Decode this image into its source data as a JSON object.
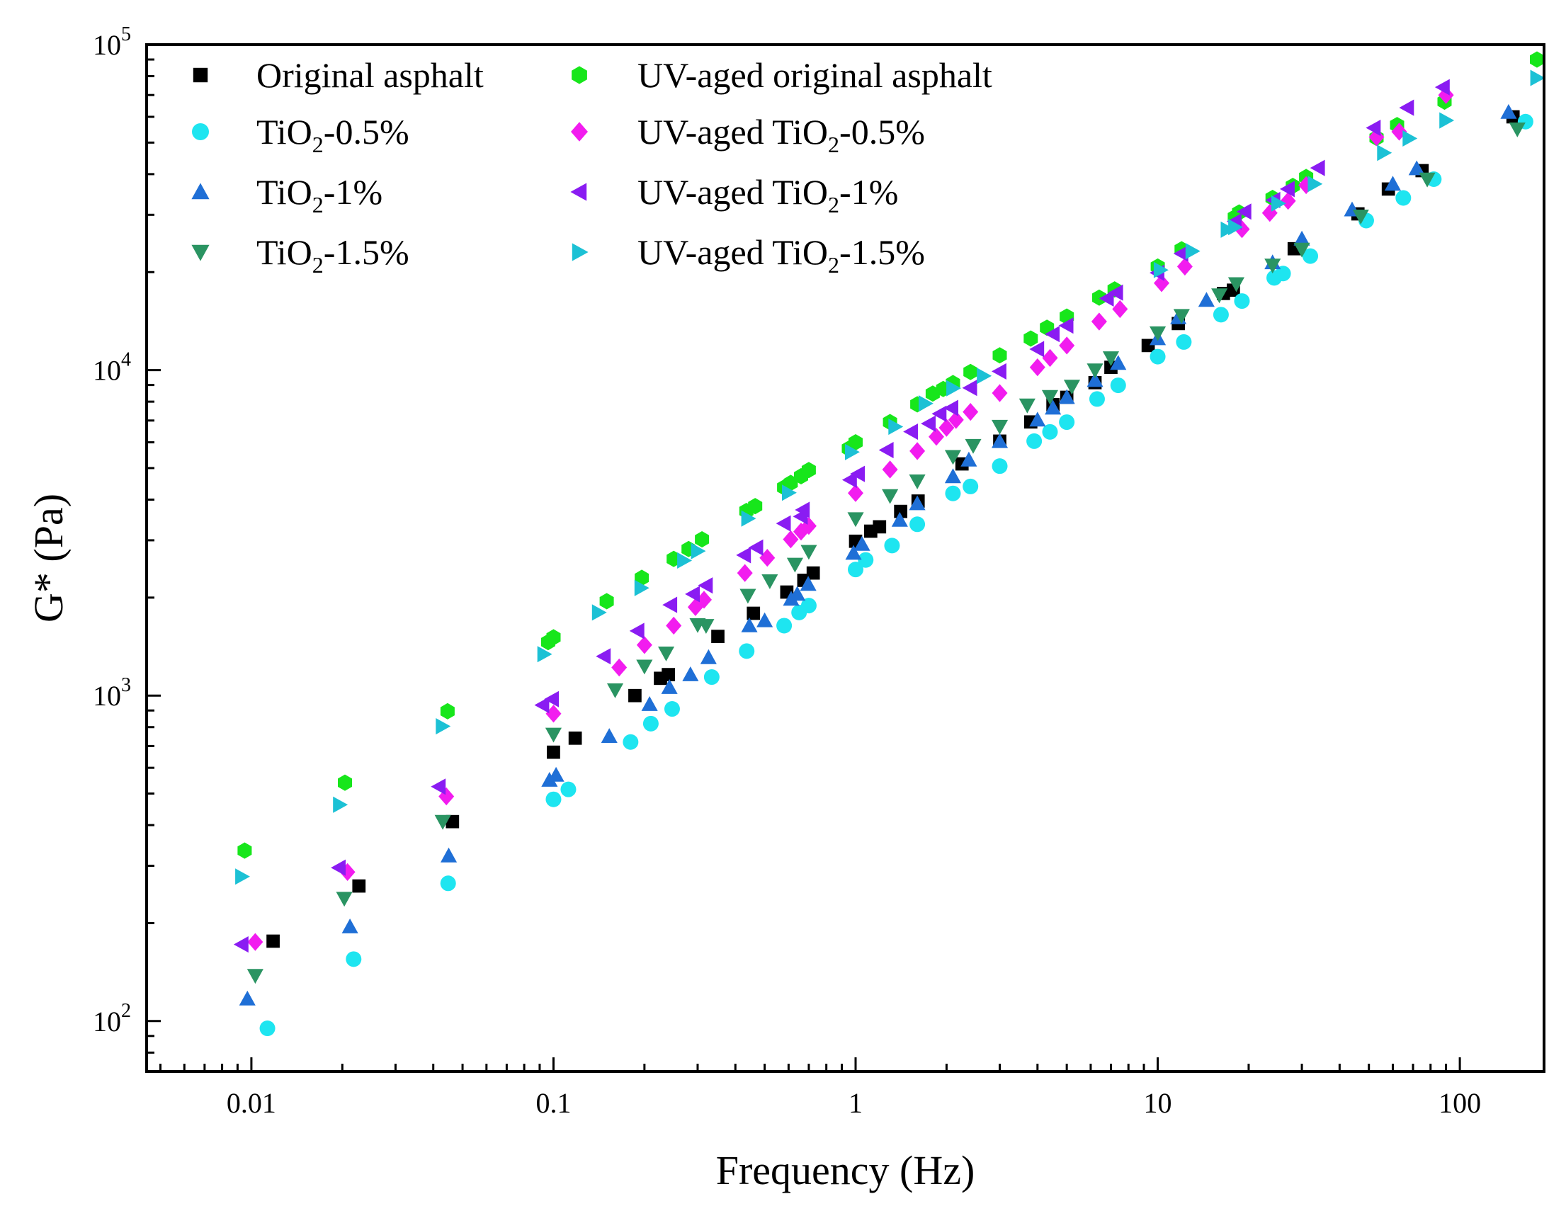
{
  "chart_data": {
    "type": "scatter",
    "title": "",
    "xlabel": "Frequency (Hz)",
    "ylabel": "G* (Pa)",
    "xscale": "log",
    "yscale": "log",
    "xlim": [
      0.0045,
      190
    ],
    "ylim": [
      70,
      100000
    ],
    "legend_position": "top-left",
    "x_ticks": [
      {
        "value": 0.01,
        "label": "0.01"
      },
      {
        "value": 0.1,
        "label": "0.1"
      },
      {
        "value": 1,
        "label": "1"
      },
      {
        "value": 10,
        "label": "10"
      },
      {
        "value": 100,
        "label": "100"
      }
    ],
    "y_ticks": [
      {
        "value": 100,
        "base": "10",
        "exp": "2"
      },
      {
        "value": 1000,
        "base": "10",
        "exp": "3"
      },
      {
        "value": 10000,
        "base": "10",
        "exp": "4"
      },
      {
        "value": 100000,
        "base": "10",
        "exp": "5"
      }
    ],
    "series": [
      {
        "name": "Original asphalt",
        "label_main": "Original asphalt",
        "label_sub": "",
        "label_tail": "",
        "marker": "square",
        "color": "#000000",
        "points": [
          [
            0.0118,
            176
          ],
          [
            0.0227,
            260
          ],
          [
            0.0463,
            410
          ],
          [
            0.1,
            670
          ],
          [
            0.118,
            740
          ],
          [
            0.186,
            1000
          ],
          [
            0.226,
            1130
          ],
          [
            0.24,
            1160
          ],
          [
            0.35,
            1520
          ],
          [
            0.459,
            1790
          ],
          [
            0.592,
            2080
          ],
          [
            0.674,
            2260
          ],
          [
            0.724,
            2380
          ],
          [
            1.0,
            2980
          ],
          [
            1.122,
            3200
          ],
          [
            1.2,
            3300
          ],
          [
            1.41,
            3680
          ],
          [
            1.61,
            3960
          ],
          [
            2.25,
            5150
          ],
          [
            3.0,
            6050
          ],
          [
            3.8,
            6930
          ],
          [
            4.5,
            7830
          ],
          [
            5.0,
            8250
          ],
          [
            6.2,
            9150
          ],
          [
            7.0,
            10200
          ],
          [
            9.3,
            11900
          ],
          [
            11.7,
            13900
          ],
          [
            16.5,
            17200
          ],
          [
            17.8,
            17600
          ],
          [
            28.3,
            23600
          ],
          [
            46.0,
            30200
          ],
          [
            58.0,
            36000
          ],
          [
            75.0,
            41000
          ],
          [
            150,
            60000
          ]
        ]
      },
      {
        "name": "TiO2-0.5%",
        "label_main": "TiO",
        "label_sub": "2",
        "label_tail": "-0.5%",
        "marker": "circle",
        "color": "#1EE5F0",
        "points": [
          [
            0.0113,
            95
          ],
          [
            0.0218,
            155
          ],
          [
            0.0448,
            265
          ],
          [
            0.1,
            480
          ],
          [
            0.112,
            515
          ],
          [
            0.18,
            720
          ],
          [
            0.21,
            820
          ],
          [
            0.247,
            910
          ],
          [
            0.334,
            1140
          ],
          [
            0.436,
            1370
          ],
          [
            0.58,
            1640
          ],
          [
            0.65,
            1800
          ],
          [
            0.7,
            1890
          ],
          [
            1.0,
            2440
          ],
          [
            1.08,
            2610
          ],
          [
            1.32,
            2890
          ],
          [
            1.6,
            3360
          ],
          [
            2.1,
            4180
          ],
          [
            2.4,
            4390
          ],
          [
            3.0,
            5070
          ],
          [
            3.9,
            6050
          ],
          [
            4.4,
            6460
          ],
          [
            5.0,
            6920
          ],
          [
            6.3,
            8150
          ],
          [
            7.4,
            8980
          ],
          [
            10.0,
            11000
          ],
          [
            12.2,
            12200
          ],
          [
            16.2,
            14800
          ],
          [
            19.0,
            16300
          ],
          [
            24.3,
            19200
          ],
          [
            26.0,
            19800
          ],
          [
            32.0,
            22400
          ],
          [
            49.0,
            28800
          ],
          [
            65.0,
            33800
          ],
          [
            82.0,
            38600
          ],
          [
            165,
            58000
          ]
        ]
      },
      {
        "name": "TiO2-1%",
        "label_main": "TiO",
        "label_sub": "2",
        "label_tail": "-1%",
        "marker": "triangle-up",
        "color": "#1F6FD6",
        "points": [
          [
            0.0097,
            117
          ],
          [
            0.0212,
            195
          ],
          [
            0.045,
            322
          ],
          [
            0.097,
            550
          ],
          [
            0.102,
            570
          ],
          [
            0.153,
            750
          ],
          [
            0.208,
            940
          ],
          [
            0.242,
            1060
          ],
          [
            0.284,
            1160
          ],
          [
            0.326,
            1310
          ],
          [
            0.445,
            1640
          ],
          [
            0.5,
            1700
          ],
          [
            0.612,
            1980
          ],
          [
            0.641,
            2050
          ],
          [
            0.697,
            2200
          ],
          [
            0.984,
            2740
          ],
          [
            1.05,
            2920
          ],
          [
            1.4,
            3460
          ],
          [
            1.6,
            3890
          ],
          [
            2.1,
            4710
          ],
          [
            2.37,
            5300
          ],
          [
            3.0,
            6040
          ],
          [
            4.0,
            7030
          ],
          [
            4.5,
            7650
          ],
          [
            5.0,
            8250
          ],
          [
            6.2,
            9300
          ],
          [
            7.4,
            10500
          ],
          [
            10.0,
            12500
          ],
          [
            11.7,
            14500
          ],
          [
            14.5,
            16400
          ],
          [
            24.0,
            21400
          ],
          [
            30.0,
            25300
          ],
          [
            44.0,
            31100
          ],
          [
            60.0,
            37300
          ],
          [
            72.0,
            41600
          ],
          [
            145,
            62000
          ]
        ]
      },
      {
        "name": "TiO2-1.5%",
        "label_main": "TiO",
        "label_sub": "2",
        "label_tail": "-1.5%",
        "marker": "triangle-down",
        "color": "#2A9462",
        "points": [
          [
            0.0103,
            138
          ],
          [
            0.0203,
            238
          ],
          [
            0.043,
            410
          ],
          [
            0.1,
            760
          ],
          [
            0.16,
            1040
          ],
          [
            0.2,
            1230
          ],
          [
            0.236,
            1350
          ],
          [
            0.3,
            1650
          ],
          [
            0.32,
            1640
          ],
          [
            0.44,
            2030
          ],
          [
            0.52,
            2250
          ],
          [
            0.63,
            2530
          ],
          [
            0.7,
            2770
          ],
          [
            1.0,
            3490
          ],
          [
            1.3,
            4110
          ],
          [
            1.6,
            4560
          ],
          [
            2.1,
            5420
          ],
          [
            2.45,
            5860
          ],
          [
            3.0,
            6710
          ],
          [
            3.7,
            7800
          ],
          [
            4.4,
            8290
          ],
          [
            5.2,
            8910
          ],
          [
            6.2,
            10000
          ],
          [
            7.0,
            10900
          ],
          [
            10.0,
            13000
          ],
          [
            12.0,
            14700
          ],
          [
            16.0,
            17000
          ],
          [
            18.2,
            18400
          ],
          [
            24.0,
            21000
          ],
          [
            30.0,
            23500
          ],
          [
            47.0,
            29700
          ],
          [
            78.0,
            38600
          ],
          [
            155,
            55000
          ]
        ]
      },
      {
        "name": "UV-aged original asphalt",
        "label_main": "UV-aged original asphalt",
        "label_sub": "",
        "label_tail": "",
        "marker": "hexagon",
        "color": "#17E61B",
        "points": [
          [
            0.0095,
            334
          ],
          [
            0.0204,
            540
          ],
          [
            0.0446,
            895
          ],
          [
            0.096,
            1460
          ],
          [
            0.1,
            1510
          ],
          [
            0.15,
            1950
          ],
          [
            0.196,
            2300
          ],
          [
            0.25,
            2630
          ],
          [
            0.28,
            2820
          ],
          [
            0.31,
            3020
          ],
          [
            0.435,
            3690
          ],
          [
            0.465,
            3820
          ],
          [
            0.58,
            4360
          ],
          [
            0.61,
            4500
          ],
          [
            0.66,
            4720
          ],
          [
            0.7,
            4930
          ],
          [
            0.95,
            5740
          ],
          [
            1.0,
            6000
          ],
          [
            1.3,
            6920
          ],
          [
            1.6,
            7850
          ],
          [
            1.8,
            8470
          ],
          [
            1.95,
            8750
          ],
          [
            2.1,
            9120
          ],
          [
            2.4,
            9870
          ],
          [
            3.0,
            11100
          ],
          [
            3.8,
            12500
          ],
          [
            4.3,
            13500
          ],
          [
            5.0,
            14600
          ],
          [
            6.4,
            16700
          ],
          [
            7.2,
            17700
          ],
          [
            10.0,
            20800
          ],
          [
            12.0,
            23500
          ],
          [
            18.0,
            29500
          ],
          [
            18.6,
            30500
          ],
          [
            24.0,
            33800
          ],
          [
            28.0,
            36800
          ],
          [
            31.0,
            39200
          ],
          [
            53.0,
            51700
          ],
          [
            62.0,
            56600
          ],
          [
            89.0,
            66800
          ],
          [
            180,
            90000
          ]
        ]
      },
      {
        "name": "UV-aged TiO2-0.5%",
        "label_main": "UV-aged TiO",
        "label_sub": "2",
        "label_tail": "-0.5%",
        "marker": "diamond",
        "color": "#F21CEF",
        "points": [
          [
            0.0103,
            175
          ],
          [
            0.0208,
            287
          ],
          [
            0.0442,
            490
          ],
          [
            0.1,
            880
          ],
          [
            0.165,
            1220
          ],
          [
            0.2,
            1430
          ],
          [
            0.25,
            1640
          ],
          [
            0.295,
            1870
          ],
          [
            0.315,
            1970
          ],
          [
            0.43,
            2380
          ],
          [
            0.51,
            2650
          ],
          [
            0.61,
            3020
          ],
          [
            0.66,
            3190
          ],
          [
            0.7,
            3320
          ],
          [
            1.0,
            4190
          ],
          [
            1.3,
            4950
          ],
          [
            1.6,
            5640
          ],
          [
            1.85,
            6240
          ],
          [
            2.0,
            6650
          ],
          [
            2.15,
            7030
          ],
          [
            2.4,
            7440
          ],
          [
            3.0,
            8500
          ],
          [
            4.0,
            10200
          ],
          [
            4.4,
            10900
          ],
          [
            5.0,
            11900
          ],
          [
            6.4,
            14100
          ],
          [
            7.5,
            15400
          ],
          [
            10.3,
            18500
          ],
          [
            12.3,
            20800
          ],
          [
            19.0,
            27100
          ],
          [
            23.5,
            30400
          ],
          [
            27.0,
            33100
          ],
          [
            31.0,
            37000
          ],
          [
            53.0,
            52000
          ],
          [
            63.0,
            54000
          ],
          [
            90.0,
            70000
          ]
        ]
      },
      {
        "name": "UV-aged TiO2-1%",
        "label_main": "UV-aged TiO",
        "label_sub": "2",
        "label_tail": "-1%",
        "marker": "triangle-left",
        "color": "#8A1CF2",
        "points": [
          [
            0.0093,
            172
          ],
          [
            0.0195,
            296
          ],
          [
            0.0418,
            525
          ],
          [
            0.092,
            935
          ],
          [
            0.099,
            975
          ],
          [
            0.147,
            1320
          ],
          [
            0.19,
            1580
          ],
          [
            0.244,
            1900
          ],
          [
            0.29,
            2050
          ],
          [
            0.32,
            2180
          ],
          [
            0.428,
            2700
          ],
          [
            0.47,
            2850
          ],
          [
            0.58,
            3380
          ],
          [
            0.66,
            3550
          ],
          [
            0.67,
            3720
          ],
          [
            0.96,
            4600
          ],
          [
            1.02,
            4800
          ],
          [
            1.27,
            5680
          ],
          [
            1.53,
            6470
          ],
          [
            1.75,
            6850
          ],
          [
            1.9,
            7340
          ],
          [
            2.08,
            7650
          ],
          [
            2.4,
            8820
          ],
          [
            3.0,
            9910
          ],
          [
            4.0,
            11600
          ],
          [
            4.5,
            12900
          ],
          [
            5.0,
            13700
          ],
          [
            6.8,
            16600
          ],
          [
            7.3,
            17300
          ],
          [
            10.0,
            19900
          ],
          [
            12.0,
            22800
          ],
          [
            18.0,
            28600
          ],
          [
            19.4,
            30700
          ],
          [
            24.2,
            33300
          ],
          [
            27.0,
            36000
          ],
          [
            34.0,
            41800
          ],
          [
            52.0,
            55500
          ],
          [
            67.0,
            64000
          ],
          [
            88.0,
            74000
          ]
        ]
      },
      {
        "name": "UV-aged TiO2-1.5%",
        "label_main": "UV-aged TiO",
        "label_sub": "2",
        "label_tail": "-1.5%",
        "marker": "triangle-right",
        "color": "#1CC1D5",
        "points": [
          [
            0.0093,
            278
          ],
          [
            0.0196,
            462
          ],
          [
            0.0429,
            805
          ],
          [
            0.093,
            1340
          ],
          [
            0.141,
            1800
          ],
          [
            0.195,
            2140
          ],
          [
            0.27,
            2600
          ],
          [
            0.3,
            2780
          ],
          [
            0.44,
            3500
          ],
          [
            0.6,
            4200
          ],
          [
            0.97,
            5600
          ],
          [
            1.35,
            6700
          ],
          [
            1.7,
            7900
          ],
          [
            2.1,
            8800
          ],
          [
            2.65,
            9600
          ],
          [
            10.2,
            20300
          ],
          [
            13.0,
            23200
          ],
          [
            17.0,
            27000
          ],
          [
            18.0,
            27500
          ],
          [
            25.0,
            32500
          ],
          [
            33.0,
            37300
          ],
          [
            56.0,
            46500
          ],
          [
            68.0,
            51500
          ],
          [
            90.0,
            58500
          ],
          [
            180,
            79000
          ]
        ]
      }
    ]
  }
}
